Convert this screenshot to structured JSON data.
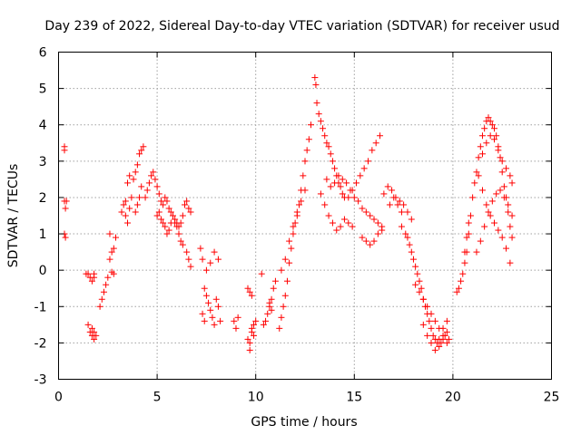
{
  "chart_data": {
    "type": "scatter",
    "title": "Day 239 of 2022, Sidereal Day-to-day VTEC variation (SDTVAR) for receiver usud",
    "xlabel": "GPS time / hours",
    "ylabel": "SDTVAR / TECUs",
    "xlim": [
      0,
      25
    ],
    "ylim": [
      -3,
      6
    ],
    "xticks": [
      "0",
      "5",
      "10",
      "15",
      "20",
      "25"
    ],
    "yticks": [
      "-3",
      "-2",
      "-1",
      "0",
      "1",
      "2",
      "3",
      "4",
      "5",
      "6"
    ],
    "grid": true,
    "marker": "plus",
    "color": "#ff0000",
    "series": [
      {
        "name": "SDTVAR",
        "x": [
          0.3,
          0.3,
          0.3,
          0.35,
          0.4,
          0.3,
          0.35,
          1.4,
          1.5,
          1.6,
          1.7,
          1.8,
          1.8,
          1.7,
          1.5,
          1.6,
          1.7,
          1.8,
          1.9,
          1.8,
          2.1,
          2.2,
          2.3,
          2.4,
          2.5,
          2.6,
          2.7,
          2.8,
          2.9,
          2.6,
          2.8,
          2.7,
          3.2,
          3.3,
          3.4,
          3.5,
          3.6,
          3.7,
          3.8,
          3.9,
          4.0,
          4.1,
          4.2,
          4.3,
          4.2,
          4.1,
          4.0,
          3.9,
          3.6,
          3.5,
          3.4,
          4.4,
          4.5,
          4.6,
          4.7,
          4.8,
          4.9,
          5.0,
          5.1,
          5.2,
          5.3,
          5.4,
          5.5,
          5.6,
          5.7,
          5.8,
          5.9,
          6.0,
          6.1,
          6.2,
          6.3,
          6.4,
          6.5,
          6.6,
          6.7,
          5.0,
          5.1,
          5.2,
          5.3,
          5.4,
          5.5,
          5.6,
          5.7,
          5.8,
          5.9,
          6.0,
          6.1,
          6.2,
          6.3,
          6.5,
          6.6,
          6.7,
          7.2,
          7.3,
          7.4,
          7.5,
          7.6,
          7.7,
          7.8,
          7.9,
          8.0,
          8.1,
          8.2,
          7.5,
          7.7,
          7.9,
          8.1,
          7.4,
          7.3,
          8.9,
          9.0,
          9.1,
          9.6,
          9.7,
          9.8,
          9.9,
          10.0,
          9.7,
          9.8,
          9.6,
          9.9,
          9.7,
          9.8,
          10.3,
          10.4,
          10.5,
          10.6,
          10.7,
          10.8,
          10.9,
          11.0,
          10.8,
          10.7,
          11.2,
          11.3,
          11.4,
          11.5,
          11.6,
          11.7,
          11.8,
          11.9,
          12.0,
          12.1,
          12.2,
          12.3,
          12.4,
          12.5,
          12.6,
          12.7,
          12.8,
          11.3,
          11.5,
          11.7,
          11.9,
          12.1,
          12.3,
          12.5,
          13.0,
          13.05,
          13.1,
          13.2,
          13.3,
          13.4,
          13.5,
          13.6,
          13.7,
          13.8,
          13.9,
          14.0,
          14.1,
          14.2,
          14.3,
          14.4,
          14.5,
          13.3,
          13.5,
          13.7,
          13.9,
          14.1,
          14.3,
          14.5,
          14.7,
          14.9,
          13.6,
          13.8,
          14.0,
          14.2,
          14.4,
          14.6,
          14.8,
          15.0,
          15.2,
          15.4,
          15.6,
          15.8,
          16.0,
          16.2,
          16.4,
          14.7,
          14.9,
          15.1,
          15.3,
          15.5,
          15.7,
          15.9,
          16.1,
          16.3,
          15.4,
          15.6,
          15.8,
          16.0,
          16.2,
          16.4,
          16.5,
          16.7,
          16.9,
          17.1,
          17.3,
          17.5,
          17.7,
          17.9,
          16.8,
          17.0,
          17.2,
          17.4,
          17.4,
          17.6,
          17.7,
          17.8,
          17.9,
          18.0,
          18.1,
          18.2,
          18.3,
          18.4,
          18.5,
          18.6,
          18.7,
          18.8,
          18.9,
          19.0,
          19.1,
          19.2,
          19.3,
          19.4,
          19.5,
          19.6,
          19.7,
          19.8,
          18.1,
          18.3,
          18.5,
          18.7,
          18.9,
          19.1,
          19.3,
          19.5,
          19.7,
          18.5,
          18.7,
          18.9,
          19.1,
          19.3,
          19.5,
          19.7,
          20.2,
          20.3,
          20.4,
          20.5,
          20.6,
          20.7,
          20.8,
          20.9,
          21.0,
          21.1,
          21.2,
          21.3,
          21.4,
          21.5,
          21.6,
          21.7,
          21.8,
          21.9,
          22.0,
          22.1,
          22.2,
          22.3,
          22.4,
          22.5,
          22.6,
          22.7,
          22.8,
          22.9,
          23.0,
          20.6,
          20.7,
          20.8,
          21.2,
          21.4,
          21.6,
          21.8,
          22.0,
          22.2,
          22.4,
          22.6,
          22.8,
          23.0,
          21.3,
          21.5,
          21.7,
          21.9,
          22.1,
          22.3,
          22.5,
          22.7,
          22.9,
          21.5,
          21.7,
          21.9,
          22.1,
          22.3,
          22.5,
          22.7,
          22.9,
          23.0
        ],
        "y": [
          3.4,
          3.3,
          1.9,
          1.7,
          1.9,
          1.0,
          0.9,
          -0.1,
          -0.1,
          -0.2,
          -0.3,
          -0.1,
          -0.2,
          -1.6,
          -1.5,
          -1.7,
          -1.8,
          -1.9,
          -1.8,
          -1.7,
          -1.0,
          -0.8,
          -0.6,
          -0.4,
          -0.2,
          0.3,
          0.5,
          0.6,
          0.9,
          1.0,
          -0.1,
          -0.05,
          1.6,
          1.8,
          1.5,
          1.3,
          1.7,
          2.0,
          2.5,
          2.7,
          2.9,
          3.2,
          3.3,
          3.4,
          2.3,
          2.0,
          1.8,
          1.6,
          2.6,
          2.4,
          1.9,
          2.0,
          2.2,
          2.4,
          2.6,
          2.7,
          2.5,
          2.3,
          2.1,
          1.9,
          1.8,
          2.0,
          1.9,
          1.7,
          1.6,
          1.5,
          1.4,
          1.3,
          1.2,
          1.3,
          1.5,
          1.8,
          1.9,
          1.7,
          1.6,
          1.5,
          1.6,
          1.4,
          1.3,
          1.2,
          1.0,
          1.1,
          1.3,
          1.5,
          1.3,
          1.2,
          1.0,
          0.8,
          0.7,
          0.5,
          0.3,
          0.1,
          0.6,
          0.3,
          -0.5,
          -0.7,
          -0.9,
          -1.1,
          -1.3,
          -1.5,
          -0.8,
          -1.0,
          -1.4,
          0.0,
          0.2,
          0.5,
          0.3,
          -1.4,
          -1.2,
          -1.4,
          -1.6,
          -1.3,
          -1.9,
          -2.2,
          -1.7,
          -1.5,
          -1.4,
          -0.6,
          -0.7,
          -0.5,
          -1.8,
          -2.0,
          -1.6,
          -0.1,
          -1.5,
          -1.4,
          -1.2,
          -1.0,
          -0.8,
          -0.5,
          -0.3,
          -1.1,
          -0.9,
          -1.6,
          -1.3,
          -1.0,
          -0.7,
          -0.3,
          0.2,
          0.6,
          1.0,
          1.3,
          1.6,
          1.8,
          2.2,
          2.6,
          3.0,
          3.3,
          3.6,
          4.0,
          0.0,
          0.3,
          0.8,
          1.2,
          1.5,
          1.9,
          2.2,
          5.3,
          5.1,
          4.6,
          4.3,
          4.1,
          3.9,
          3.7,
          3.5,
          3.4,
          3.2,
          3.0,
          2.8,
          2.6,
          2.4,
          2.3,
          2.1,
          2.0,
          2.1,
          1.8,
          1.5,
          1.3,
          1.1,
          1.2,
          1.4,
          1.3,
          1.2,
          2.5,
          2.3,
          2.4,
          2.6,
          2.5,
          2.4,
          2.2,
          2.0,
          1.9,
          1.7,
          1.6,
          1.5,
          1.4,
          1.3,
          1.2,
          2.0,
          2.2,
          2.4,
          2.6,
          2.8,
          3.0,
          3.3,
          3.5,
          3.7,
          0.9,
          0.8,
          0.7,
          0.8,
          1.0,
          1.1,
          2.1,
          2.3,
          2.2,
          2.0,
          1.9,
          1.8,
          1.6,
          1.4,
          1.8,
          2.0,
          1.8,
          1.6,
          1.2,
          1.0,
          0.9,
          0.7,
          0.5,
          0.3,
          0.1,
          -0.1,
          -0.3,
          -0.5,
          -0.8,
          -1.0,
          -1.2,
          -1.4,
          -1.6,
          -1.8,
          -1.9,
          -2.0,
          -2.1,
          -2.0,
          -1.9,
          -1.8,
          -1.7,
          -1.9,
          -0.4,
          -0.6,
          -0.8,
          -1.0,
          -1.2,
          -1.4,
          -1.6,
          -1.8,
          -2.0,
          -1.5,
          -1.8,
          -2.0,
          -2.2,
          -1.9,
          -1.6,
          -1.4,
          -0.6,
          -0.5,
          -0.3,
          -0.1,
          0.2,
          0.5,
          1.0,
          1.5,
          2.0,
          2.4,
          2.7,
          3.1,
          3.4,
          3.7,
          3.9,
          4.1,
          4.2,
          4.1,
          4.0,
          3.9,
          3.7,
          3.4,
          3.1,
          2.7,
          2.3,
          2.0,
          1.6,
          1.2,
          0.9,
          0.5,
          0.9,
          1.3,
          0.5,
          0.8,
          1.2,
          1.6,
          1.9,
          2.1,
          2.2,
          2.0,
          1.8,
          1.5,
          2.6,
          2.2,
          1.8,
          1.5,
          1.3,
          1.1,
          0.9,
          0.6,
          0.2,
          3.2,
          3.5,
          3.7,
          3.6,
          3.3,
          3.0,
          2.8,
          2.6,
          2.4
        ]
      }
    ]
  }
}
